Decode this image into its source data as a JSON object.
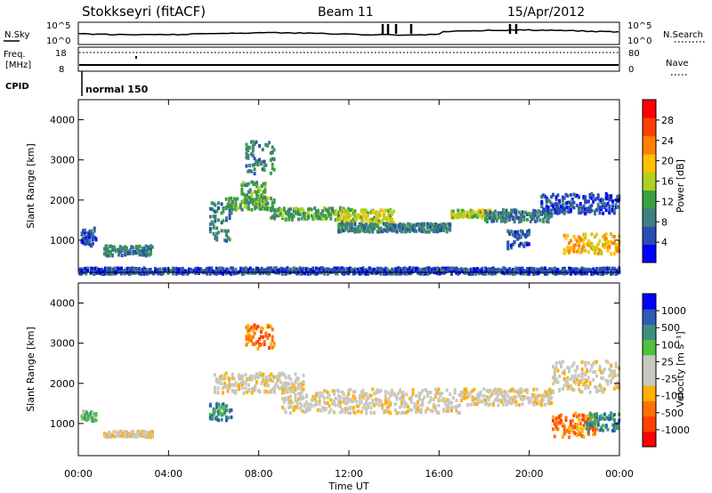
{
  "header": {
    "station": "Stokkseyri (fitACF)",
    "beam": "Beam 11",
    "date": "15/Apr/2012"
  },
  "status_panel": {
    "nsky_label": "N.Sky",
    "nsearch_label": "N.Search",
    "nsky_ticks": [
      "10^5",
      "10^0"
    ],
    "nsearch_ticks": [
      "10^5",
      "10^0"
    ],
    "freq_label": "Freq.",
    "freq_unit": "[MHz]",
    "freq_ticks": [
      "18",
      "8"
    ],
    "nave_label": "Nave",
    "nave_ticks": [
      "80",
      "0"
    ],
    "cpid_label": "CPID",
    "cpid_value": "normal 150"
  },
  "colors": {
    "power_scale": [
      "#0000ff",
      "#2b4cb6",
      "#3f7f80",
      "#3aa040",
      "#b0d020",
      "#ffc000",
      "#ff8000",
      "#ff4000",
      "#ff0000"
    ],
    "velocity_scale": [
      "#ff0000",
      "#ff4000",
      "#ff7000",
      "#ffb000",
      "#c8c8c0",
      "#c8c8c0",
      "#50c040",
      "#3f8f7f",
      "#2b5cb6",
      "#0000ff"
    ],
    "ground_scatter": "#c8c8c0"
  },
  "chart_data": [
    {
      "type": "heatmap",
      "panel": "power",
      "ylabel": "Slant Range [km]",
      "ylim": [
        200,
        4500
      ],
      "yticks": [
        "1000",
        "2000",
        "3000",
        "4000"
      ],
      "xlim": [
        0,
        24
      ],
      "xticks": [
        "00:00",
        "04:00",
        "08:00",
        "12:00",
        "16:00",
        "20:00",
        "00:00"
      ],
      "colorbar_label": "Power [dB]",
      "colorbar_ticks": [
        "4",
        "8",
        "12",
        "16",
        "20",
        "24",
        "28"
      ],
      "colorbar_range": [
        0,
        32
      ],
      "bands": [
        {
          "t0": 0.1,
          "t1": 0.8,
          "r0": 900,
          "r1": 1350,
          "level": 1
        },
        {
          "t0": 1.1,
          "t1": 3.3,
          "r0": 650,
          "r1": 900,
          "level": 2
        },
        {
          "t0": 5.8,
          "t1": 6.8,
          "r0": 1000,
          "r1": 2000,
          "level": 2
        },
        {
          "t0": 6.5,
          "t1": 8.7,
          "r0": 1800,
          "r1": 2100,
          "level": 3
        },
        {
          "t0": 7.2,
          "t1": 8.3,
          "r0": 2100,
          "r1": 2500,
          "level": 3
        },
        {
          "t0": 7.4,
          "t1": 8.7,
          "r0": 2700,
          "r1": 3500,
          "level": 2
        },
        {
          "t0": 8.5,
          "t1": 12.0,
          "r0": 1550,
          "r1": 1850,
          "level": 3
        },
        {
          "t0": 11.5,
          "t1": 14.0,
          "r0": 1450,
          "r1": 1800,
          "level": 4
        },
        {
          "t0": 11.5,
          "t1": 16.5,
          "r0": 1250,
          "r1": 1450,
          "level": 2
        },
        {
          "t0": 16.5,
          "t1": 18.5,
          "r0": 1600,
          "r1": 1800,
          "level": 4
        },
        {
          "t0": 18.0,
          "t1": 21.0,
          "r0": 1500,
          "r1": 1800,
          "level": 2
        },
        {
          "t0": 20.5,
          "t1": 24.0,
          "r0": 1700,
          "r1": 2200,
          "level": 1
        },
        {
          "t0": 21.5,
          "t1": 24.0,
          "r0": 700,
          "r1": 1200,
          "level": 5
        },
        {
          "t0": 19.0,
          "t1": 20.0,
          "r0": 800,
          "r1": 1300,
          "level": 1
        },
        {
          "t0": 0.0,
          "t1": 24.0,
          "r0": 200,
          "r1": 350,
          "level": 1
        }
      ]
    },
    {
      "type": "heatmap",
      "panel": "velocity",
      "ylabel": "Slant Range [km]",
      "ylim": [
        200,
        4500
      ],
      "yticks": [
        "1000",
        "2000",
        "3000",
        "4000"
      ],
      "xlim": [
        0,
        24
      ],
      "xlabel": "Time UT",
      "xticks": [
        "00:00",
        "04:00",
        "08:00",
        "12:00",
        "16:00",
        "20:00",
        "00:00"
      ],
      "colorbar_label": "Velocity [m s⁻¹]",
      "colorbar_ticks": [
        "1000",
        "500",
        "100",
        "25",
        "-25",
        "-100",
        "-500",
        "-1000"
      ],
      "bands": [
        {
          "t0": 0.1,
          "t1": 0.8,
          "r0": 1100,
          "r1": 1350,
          "level": 6
        },
        {
          "t0": 1.1,
          "t1": 3.3,
          "r0": 700,
          "r1": 850,
          "level": 4
        },
        {
          "t0": 5.8,
          "t1": 6.8,
          "r0": 1100,
          "r1": 1600,
          "level": 7
        },
        {
          "t0": 6.0,
          "t1": 10.0,
          "r0": 1800,
          "r1": 2300,
          "level": 4
        },
        {
          "t0": 7.4,
          "t1": 8.7,
          "r0": 2900,
          "r1": 3500,
          "level": 2
        },
        {
          "t0": 9.0,
          "t1": 17.0,
          "r0": 1300,
          "r1": 1900,
          "level": 4
        },
        {
          "t0": 17.0,
          "t1": 21.0,
          "r0": 1500,
          "r1": 1900,
          "level": 4
        },
        {
          "t0": 21.0,
          "t1": 24.0,
          "r0": 1800,
          "r1": 2600,
          "level": 4
        },
        {
          "t0": 21.0,
          "t1": 23.0,
          "r0": 700,
          "r1": 1300,
          "level": 2
        },
        {
          "t0": 22.5,
          "t1": 24.0,
          "r0": 800,
          "r1": 1300,
          "level": 7
        }
      ]
    }
  ]
}
